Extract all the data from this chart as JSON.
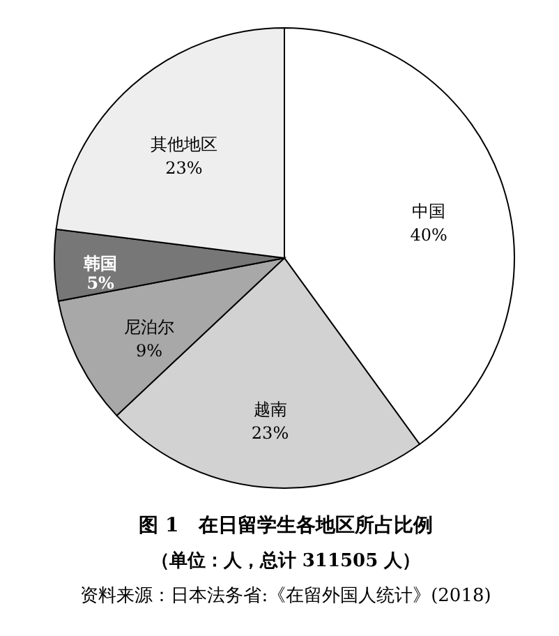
{
  "chart_data": {
    "type": "pie",
    "title": "图 1　在日留学生各地区所占比例",
    "subtitle": "（单位：人，总计 311505 人）",
    "categories": [
      "中国",
      "越南",
      "尼泊尔",
      "韩国",
      "其他地区"
    ],
    "values": [
      40,
      23,
      9,
      5,
      23
    ],
    "value_labels": [
      "40%",
      "23%",
      "9%",
      "5%",
      "23%"
    ],
    "colors": [
      "#ffffff",
      "#d2d2d2",
      "#a8a8a8",
      "#777777",
      "#eeeeee"
    ],
    "annotations": [
      "资料来源：日本法务省:《在留外国人统计》(2018)"
    ]
  }
}
